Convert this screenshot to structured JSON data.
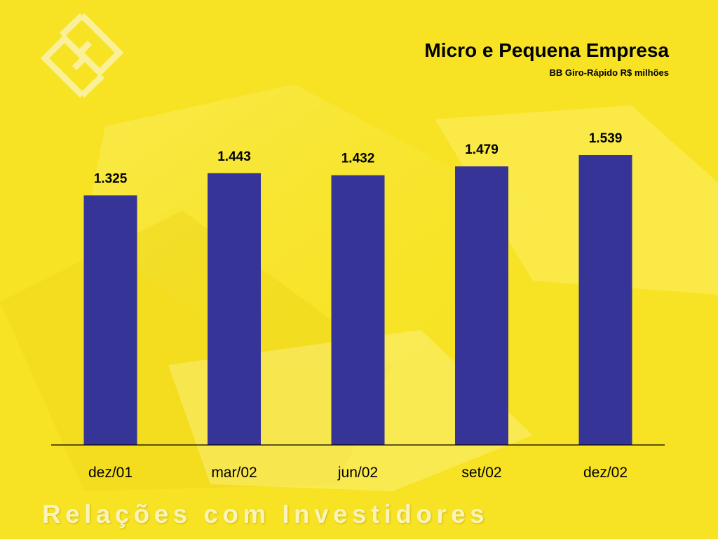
{
  "header": {
    "title": "Micro e Pequena Empresa",
    "subtitle": "BB Giro-Rápido R$ milhões"
  },
  "footer": {
    "text": "Relações com Investidores"
  },
  "colors": {
    "background": "#F7E323",
    "bar": "#363597",
    "axis": "#000000"
  },
  "chart_data": {
    "type": "bar",
    "title": "Micro e Pequena Empresa",
    "subtitle": "BB Giro-Rápido R$ milhões",
    "categories": [
      "dez/01",
      "mar/02",
      "jun/02",
      "set/02",
      "dez/02"
    ],
    "values": [
      1325,
      1443,
      1432,
      1479,
      1539
    ],
    "labels": [
      "1.325",
      "1.443",
      "1.432",
      "1.479",
      "1.539"
    ],
    "ylim": [
      0,
      1539
    ],
    "grid": false,
    "legend": "none"
  }
}
